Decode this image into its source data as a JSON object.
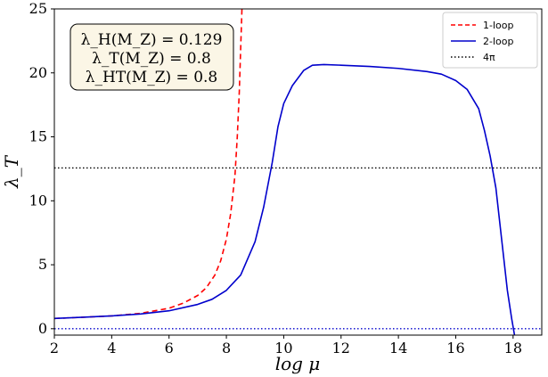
{
  "chart_data": {
    "type": "line",
    "xlabel": "log μ",
    "ylabel": "λ_T",
    "xlim": [
      2,
      19
    ],
    "ylim": [
      -0.5,
      25
    ],
    "xticks": [
      2,
      4,
      6,
      8,
      10,
      12,
      14,
      16,
      18
    ],
    "yticks": [
      0,
      5,
      10,
      15,
      20,
      25
    ],
    "grid": false,
    "legend_position": "top-right",
    "annotation": {
      "lines": [
        "λ_H(M_Z) = 0.129",
        "λ_T(M_Z) = 0.8",
        "λ_HT(M_Z) = 0.8"
      ],
      "position": "top-left"
    },
    "series": [
      {
        "name": "1-loop",
        "color": "#ff0000",
        "style": "dashed",
        "x": [
          2,
          3,
          4,
          5,
          6,
          6.5,
          7,
          7.3,
          7.6,
          7.8,
          8.0,
          8.15,
          8.3,
          8.38,
          8.45,
          8.5,
          8.55
        ],
        "y": [
          0.8,
          0.9,
          1.0,
          1.2,
          1.6,
          2.0,
          2.6,
          3.2,
          4.2,
          5.3,
          7.0,
          9.0,
          12.0,
          15.0,
          18.5,
          22.0,
          25.5
        ]
      },
      {
        "name": "2-loop",
        "color": "#0000cc",
        "style": "solid",
        "x": [
          2,
          3,
          4,
          5,
          6,
          7,
          7.5,
          8,
          8.5,
          9,
          9.3,
          9.6,
          9.8,
          10.0,
          10.3,
          10.7,
          11.0,
          11.4,
          12,
          13,
          14,
          15,
          15.5,
          16,
          16.4,
          16.8,
          17.0,
          17.2,
          17.4,
          17.6,
          17.8,
          17.95,
          18.05
        ],
        "y": [
          0.8,
          0.9,
          1.0,
          1.15,
          1.4,
          1.9,
          2.3,
          3.0,
          4.2,
          6.8,
          9.5,
          13.0,
          15.8,
          17.6,
          19.0,
          20.2,
          20.6,
          20.65,
          20.6,
          20.5,
          20.35,
          20.1,
          19.9,
          19.4,
          18.7,
          17.2,
          15.5,
          13.5,
          11.0,
          7.0,
          3.0,
          0.8,
          -0.5
        ]
      },
      {
        "name": "4π",
        "color": "#000000",
        "style": "dotted",
        "x": [
          2,
          19
        ],
        "y": [
          12.566,
          12.566
        ]
      },
      {
        "name": "",
        "color": "#0000cc",
        "style": "dotted",
        "x": [
          2,
          19
        ],
        "y": [
          0,
          0
        ]
      }
    ]
  }
}
